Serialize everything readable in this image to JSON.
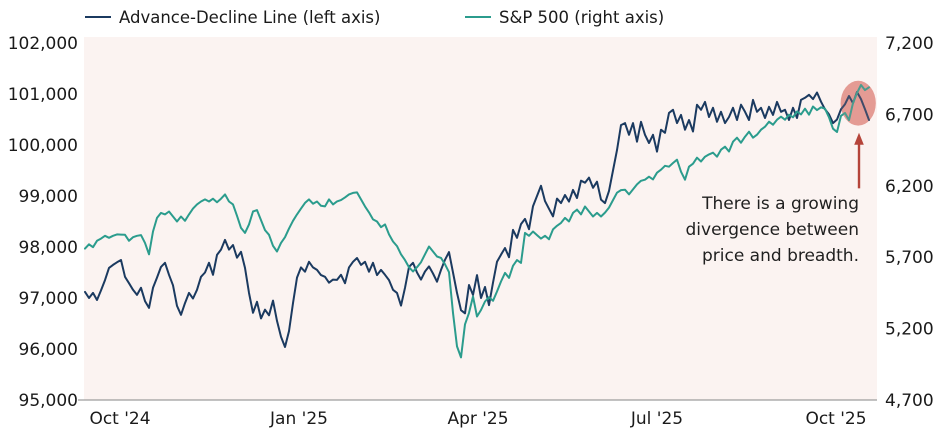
{
  "legend": {
    "items": [
      {
        "label": "Advance-Decline Line (left axis)",
        "color": "#1b3a60"
      },
      {
        "label": "S&P 500 (right axis)",
        "color": "#2b9c8d"
      }
    ]
  },
  "annotation": {
    "text": "There is a growing divergence between price and breadth."
  },
  "chart_data": {
    "type": "line",
    "title": "",
    "x_tick_labels": [
      "Oct '24",
      "Jan '25",
      "Apr '25",
      "Jul '25",
      "Oct '25"
    ],
    "x_tick_indices": [
      8.75,
      53.5,
      98.25,
      143,
      187.75
    ],
    "left_axis": {
      "name": "Advance-Decline Line",
      "min": 95000,
      "max": 102000,
      "ticks": [
        95000,
        96000,
        97000,
        98000,
        99000,
        100000,
        101000,
        102000
      ]
    },
    "right_axis": {
      "name": "S&P 500",
      "min": 4700,
      "max": 7200,
      "ticks": [
        4700,
        5200,
        5700,
        6200,
        6700,
        7200
      ]
    },
    "series": [
      {
        "name": "Advance-Decline Line (left axis)",
        "axis": "left",
        "color": "#1b3a60",
        "values": [
          97120,
          97000,
          97100,
          96960,
          97150,
          97350,
          97590,
          97650,
          97700,
          97745,
          97415,
          97290,
          97160,
          97060,
          97200,
          96940,
          96805,
          97200,
          97400,
          97610,
          97690,
          97455,
          97250,
          96845,
          96670,
          96900,
          97100,
          96990,
          97160,
          97415,
          97500,
          97690,
          97455,
          97845,
          97950,
          98140,
          97950,
          98040,
          97790,
          97905,
          97590,
          97100,
          96710,
          96925,
          96600,
          96770,
          96660,
          96950,
          96550,
          96240,
          96040,
          96350,
          96900,
          97400,
          97600,
          97515,
          97710,
          97600,
          97550,
          97450,
          97415,
          97300,
          97360,
          97355,
          97455,
          97290,
          97600,
          97710,
          97785,
          97650,
          97710,
          97515,
          97690,
          97450,
          97550,
          97455,
          97350,
          97160,
          97100,
          96850,
          97200,
          97610,
          97690,
          97500,
          97360,
          97520,
          97620,
          97480,
          97320,
          97550,
          97750,
          97900,
          97500,
          97100,
          96760,
          96700,
          97255,
          97060,
          97450,
          97000,
          97215,
          96860,
          97300,
          97710,
          97850,
          97980,
          97800,
          98335,
          98180,
          98450,
          98550,
          98350,
          98800,
          99000,
          99200,
          98900,
          98750,
          98600,
          98950,
          98860,
          99020,
          98890,
          99120,
          98960,
          99300,
          99260,
          99360,
          99160,
          99280,
          98930,
          98860,
          99100,
          99500,
          99900,
          100390,
          100430,
          100200,
          100430,
          100065,
          100455,
          100200,
          100040,
          100200,
          99870,
          100300,
          100240,
          100630,
          100690,
          100430,
          100590,
          100300,
          100490,
          100265,
          100790,
          100690,
          100845,
          100550,
          100730,
          100455,
          100650,
          100430,
          100550,
          100730,
          100490,
          100790,
          100650,
          100490,
          100885,
          100650,
          100730,
          100530,
          100750,
          100590,
          100845,
          100650,
          100690,
          100490,
          100730,
          100530,
          100885,
          100925,
          100985,
          100900,
          101030,
          100850,
          100700,
          100600,
          100430,
          100500,
          100700,
          100800,
          100960,
          100820,
          101040,
          100900,
          100700,
          100490
        ]
      },
      {
        "name": "S&P 500 (right axis)",
        "axis": "right",
        "color": "#2b9c8d",
        "values": [
          5760,
          5790,
          5770,
          5815,
          5830,
          5850,
          5836,
          5850,
          5860,
          5858,
          5857,
          5815,
          5840,
          5850,
          5855,
          5800,
          5720,
          5880,
          5975,
          6010,
          6000,
          6020,
          5985,
          5950,
          5985,
          5955,
          6000,
          6040,
          6070,
          6090,
          6105,
          6090,
          6110,
          6085,
          6110,
          6140,
          6090,
          6070,
          5990,
          5905,
          5870,
          5930,
          6020,
          6030,
          5960,
          5890,
          5857,
          5780,
          5740,
          5800,
          5840,
          5900,
          5955,
          6000,
          6040,
          6080,
          6105,
          6075,
          6090,
          6060,
          6056,
          6105,
          6070,
          6091,
          6100,
          6119,
          6140,
          6150,
          6154,
          6105,
          6056,
          6014,
          5965,
          5950,
          5910,
          5930,
          5860,
          5810,
          5778,
          5720,
          5680,
          5630,
          5600,
          5630,
          5665,
          5720,
          5775,
          5740,
          5705,
          5695,
          5650,
          5595,
          5310,
          5075,
          4998,
          5230,
          5310,
          5425,
          5285,
          5330,
          5390,
          5420,
          5395,
          5460,
          5530,
          5590,
          5555,
          5640,
          5680,
          5660,
          5870,
          5850,
          5880,
          5855,
          5830,
          5850,
          5825,
          5895,
          5920,
          5940,
          5975,
          5950,
          6010,
          6033,
          6000,
          6055,
          6020,
          5985,
          6010,
          5985,
          6012,
          6047,
          6100,
          6152,
          6170,
          6173,
          6140,
          6175,
          6210,
          6235,
          6243,
          6264,
          6245,
          6292,
          6313,
          6340,
          6334,
          6360,
          6383,
          6299,
          6243,
          6334,
          6355,
          6397,
          6370,
          6404,
          6420,
          6432,
          6404,
          6453,
          6474,
          6440,
          6509,
          6537,
          6502,
          6544,
          6579,
          6537,
          6558,
          6593,
          6614,
          6649,
          6628,
          6663,
          6684,
          6663,
          6698,
          6680,
          6720,
          6700,
          6740,
          6698,
          6755,
          6730,
          6750,
          6740,
          6680,
          6600,
          6577,
          6690,
          6710,
          6660,
          6780,
          6850,
          6906,
          6870,
          6890
        ]
      }
    ],
    "highlight_ellipse": {
      "center_index": 193.3,
      "center_value_left": 100820,
      "radius_index": 4.4,
      "radius_value_left": 440,
      "color": "#e49b94",
      "under_opacity": 1,
      "over_opacity": 0.18
    },
    "arrow": {
      "x_index": 193.5,
      "from_value_left": 99150,
      "to_value_left": 100200,
      "color": "#b5443a"
    },
    "annotation_text": "There is a growing divergence between price and breadth.",
    "colors": {
      "plot_bg": "#fbf3f1",
      "axis_line": "#9d9d9d",
      "text": "#1a1a1a",
      "background": "#ffffff"
    }
  }
}
